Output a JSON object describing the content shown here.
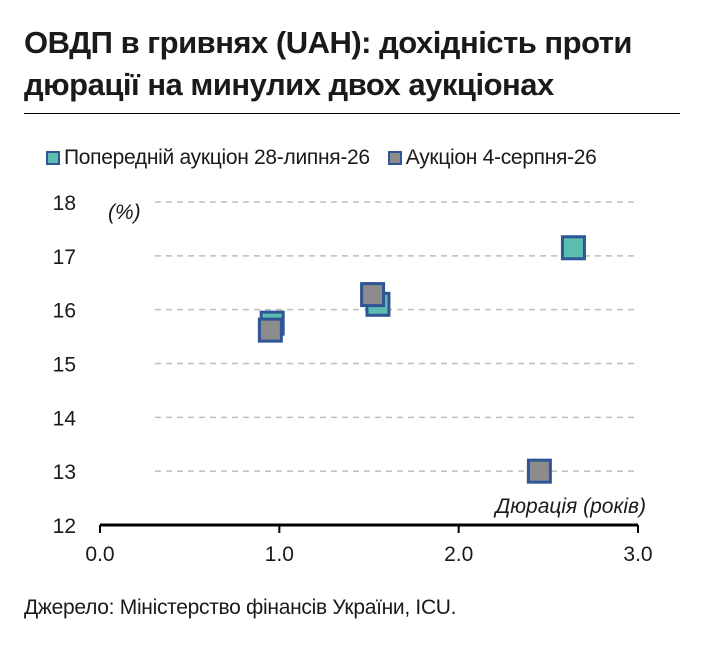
{
  "title_line1": "ОВДП в гривнях (UAH): дохідність проти",
  "title_line2": "дюрації на минулих двох аукціонах",
  "source": "Джерело: Міністерство фінансів України, ICU.",
  "chart_data": {
    "type": "scatter",
    "title": "ОВДП в гривнях (UAH): дохідність проти дюрації на минулих двох аукціонах",
    "xlabel": "Дюрація (років)",
    "ylabel": "(%)",
    "xlim": [
      0,
      3
    ],
    "ylim": [
      12,
      18
    ],
    "x_ticks": [
      "0.0",
      "1.0",
      "2.0",
      "3.0"
    ],
    "y_ticks": [
      "12",
      "13",
      "14",
      "15",
      "16",
      "17",
      "18"
    ],
    "grid": "horizontal dashed",
    "legend_position": "top",
    "series": [
      {
        "name": "Попередній аукціон 28-липня-26",
        "color": "#5bbcb0",
        "border": "#2f5597",
        "points": [
          {
            "x": 0.96,
            "y": 15.75
          },
          {
            "x": 1.55,
            "y": 16.1
          },
          {
            "x": 2.64,
            "y": 17.15
          }
        ]
      },
      {
        "name": "Аукціон 4-серпня-26",
        "color": "#8c8c8c",
        "border": "#2f5597",
        "points": [
          {
            "x": 0.95,
            "y": 15.62
          },
          {
            "x": 1.52,
            "y": 16.28
          },
          {
            "x": 2.45,
            "y": 13.0
          }
        ]
      }
    ]
  }
}
